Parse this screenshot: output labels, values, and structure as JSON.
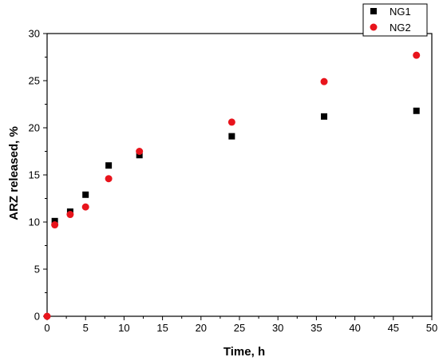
{
  "chart_data": {
    "type": "scatter",
    "xlabel": "Time, h",
    "ylabel": "ARZ released, %",
    "xlim": [
      0,
      50
    ],
    "ylim": [
      0,
      30
    ],
    "x_ticks": [
      0,
      5,
      10,
      15,
      20,
      25,
      30,
      35,
      40,
      45,
      50
    ],
    "y_ticks": [
      0,
      5,
      10,
      15,
      20,
      25,
      30
    ],
    "grid": false,
    "legend_position": "top-right",
    "series": [
      {
        "name": "NG1",
        "marker": "square",
        "color": "#000000",
        "x": [
          1,
          3,
          5,
          8,
          12,
          24,
          36,
          48
        ],
        "y": [
          10.1,
          11.1,
          12.9,
          16.0,
          17.1,
          19.1,
          21.2,
          21.8
        ]
      },
      {
        "name": "NG2",
        "marker": "circle",
        "color": "#e8141c",
        "x": [
          0,
          1,
          3,
          5,
          8,
          12,
          24,
          36,
          48
        ],
        "y": [
          0,
          9.7,
          10.8,
          11.6,
          14.6,
          17.5,
          20.6,
          24.9,
          27.7
        ]
      }
    ]
  }
}
